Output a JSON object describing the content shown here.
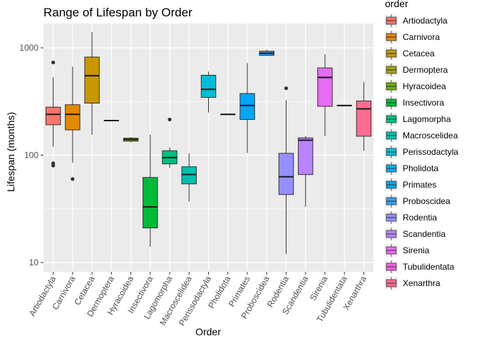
{
  "chart_data": {
    "type": "boxplot",
    "title": "Range of Lifespan by Order",
    "xlabel": "Order",
    "ylabel": "Lifespan (months)",
    "y_scale": "log10",
    "ylim": [
      10,
      1700
    ],
    "y_ticks": [
      10,
      100,
      1000
    ],
    "y_tick_labels": [
      "10",
      "100",
      "1000"
    ],
    "grid": true,
    "legend": {
      "title": "order",
      "position": "right"
    },
    "categories": [
      "Artiodactyla",
      "Carnivora",
      "Cetacea",
      "Dermoptera",
      "Hyracoidea",
      "Insectivora",
      "Lagomorpha",
      "Macroscelidea",
      "Perissodactyla",
      "Pholidota",
      "Primates",
      "Proboscidea",
      "Rodentia",
      "Scandentia",
      "Sirenia",
      "Tubulidentata",
      "Xenarthra"
    ],
    "colors": [
      "#F8766D",
      "#E18A00",
      "#BE9C00",
      "#8CAB00",
      "#24B700",
      "#00BE70",
      "#00C1AB",
      "#00BBDA",
      "#00ACFC",
      "#8B93FF",
      "#D575FE",
      "#F962DD",
      "#FF65AC",
      "#0CB702",
      "#00C19A",
      "#619CFF",
      "#E76BF3"
    ],
    "boxes": [
      {
        "order": "Artiodactyla",
        "min": 120,
        "q1": 192,
        "median": 240,
        "q3": 280,
        "max": 530,
        "outliers": [
          730,
          84,
          80
        ],
        "color": "#F8766D"
      },
      {
        "order": "Carnivora",
        "min": 85,
        "q1": 172,
        "median": 240,
        "q3": 295,
        "max": 670,
        "outliers": [
          60
        ],
        "color": "#E18A00"
      },
      {
        "order": "Cetacea",
        "min": 155,
        "q1": 305,
        "median": 550,
        "q3": 820,
        "max": 1400,
        "outliers": [],
        "color": "#C99800"
      },
      {
        "order": "Dermoptera",
        "min": 210,
        "q1": 210,
        "median": 210,
        "q3": 210,
        "max": 210,
        "outliers": [],
        "color": "#A3A500"
      },
      {
        "order": "Hyracoidea",
        "min": 132,
        "q1": 135,
        "median": 140,
        "q3": 144,
        "max": 147,
        "outliers": [],
        "color": "#6BB100"
      },
      {
        "order": "Insectivora",
        "min": 14,
        "q1": 21,
        "median": 33,
        "q3": 62,
        "max": 155,
        "outliers": [],
        "color": "#00BA38"
      },
      {
        "order": "Lagomorpha",
        "min": 76,
        "q1": 83,
        "median": 95,
        "q3": 110,
        "max": 118,
        "outliers": [
          215
        ],
        "color": "#00BF7D"
      },
      {
        "order": "Macroscelidea",
        "min": 37,
        "q1": 54,
        "median": 66,
        "q3": 78,
        "max": 104,
        "outliers": [],
        "color": "#00C0AF"
      },
      {
        "order": "Perissodactyla",
        "min": 250,
        "q1": 345,
        "median": 410,
        "q3": 555,
        "max": 600,
        "outliers": [],
        "color": "#00BCD8"
      },
      {
        "order": "Pholidota",
        "min": 240,
        "q1": 240,
        "median": 240,
        "q3": 240,
        "max": 240,
        "outliers": [],
        "color": "#00B0F6"
      },
      {
        "order": "Primates",
        "min": 105,
        "q1": 215,
        "median": 290,
        "q3": 375,
        "max": 720,
        "outliers": [],
        "color": "#00A5FF"
      },
      {
        "order": "Proboscidea",
        "min": 840,
        "q1": 850,
        "median": 890,
        "q3": 930,
        "max": 960,
        "outliers": [],
        "color": "#35A2FF"
      },
      {
        "order": "Rodentia",
        "min": 12,
        "q1": 43,
        "median": 63,
        "q3": 104,
        "max": 325,
        "outliers": [
          420
        ],
        "color": "#9590FF"
      },
      {
        "order": "Scandentia",
        "min": 33,
        "q1": 66,
        "median": 138,
        "q3": 145,
        "max": 150,
        "outliers": [],
        "color": "#B983FF"
      },
      {
        "order": "Sirenia",
        "min": 150,
        "q1": 285,
        "median": 530,
        "q3": 650,
        "max": 870,
        "outliers": [],
        "color": "#E76BF3"
      },
      {
        "order": "Tubulidentata",
        "min": 290,
        "q1": 290,
        "median": 290,
        "q3": 290,
        "max": 290,
        "outliers": [],
        "color": "#FA62DB"
      },
      {
        "order": "Xenarthra",
        "min": 110,
        "q1": 150,
        "median": 270,
        "q3": 320,
        "max": 480,
        "outliers": [],
        "color": "#FF6C91"
      }
    ]
  }
}
